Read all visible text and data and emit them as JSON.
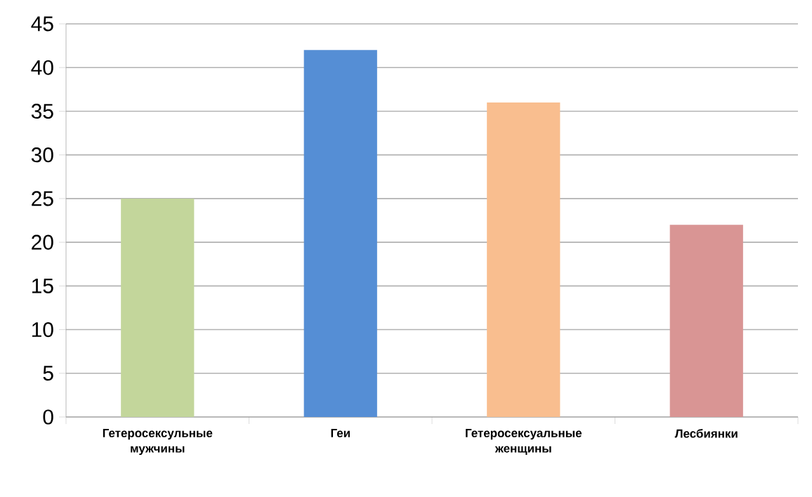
{
  "chart_data": {
    "type": "bar",
    "categories": [
      "Гетеросексульные мужчины",
      "Геи",
      "Гетеросексуальные женщины",
      "Лесбиянки"
    ],
    "values": [
      25,
      42,
      36,
      22
    ],
    "colors": [
      "#c3d69b",
      "#558ed5",
      "#f9be8f",
      "#d99594"
    ],
    "ylim": [
      0,
      45
    ],
    "yticks": [
      0,
      5,
      10,
      15,
      20,
      25,
      30,
      35,
      40,
      45
    ],
    "grid": "y"
  }
}
